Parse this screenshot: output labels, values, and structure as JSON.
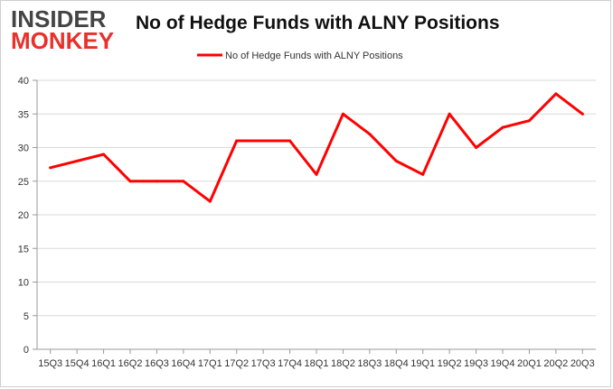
{
  "logo": {
    "line1": "INSIDER",
    "line2": "MONKEY"
  },
  "colors": {
    "series": "#ff0000",
    "grid": "#d9d9d9",
    "axis": "#999999",
    "logo_red": "#e8312a"
  },
  "chart_data": {
    "type": "line",
    "title": "No of Hedge Funds with ALNY Positions",
    "xlabel": "",
    "ylabel": "",
    "ylim": [
      0,
      40
    ],
    "yticks": [
      0,
      5,
      10,
      15,
      20,
      25,
      30,
      35,
      40
    ],
    "grid": "horizontal",
    "legend_position": "top-center",
    "categories": [
      "15Q3",
      "15Q4",
      "16Q1",
      "16Q2",
      "16Q3",
      "16Q4",
      "17Q1",
      "17Q2",
      "17Q3",
      "17Q4",
      "18Q1",
      "18Q2",
      "18Q3",
      "18Q4",
      "19Q1",
      "19Q2",
      "19Q3",
      "19Q4",
      "20Q1",
      "20Q2",
      "20Q3"
    ],
    "series": [
      {
        "name": "No of Hedge Funds with ALNY Positions",
        "values": [
          27,
          28,
          29,
          25,
          25,
          25,
          22,
          31,
          31,
          31,
          26,
          35,
          32,
          28,
          26,
          35,
          30,
          33,
          34,
          38,
          35
        ]
      }
    ]
  }
}
